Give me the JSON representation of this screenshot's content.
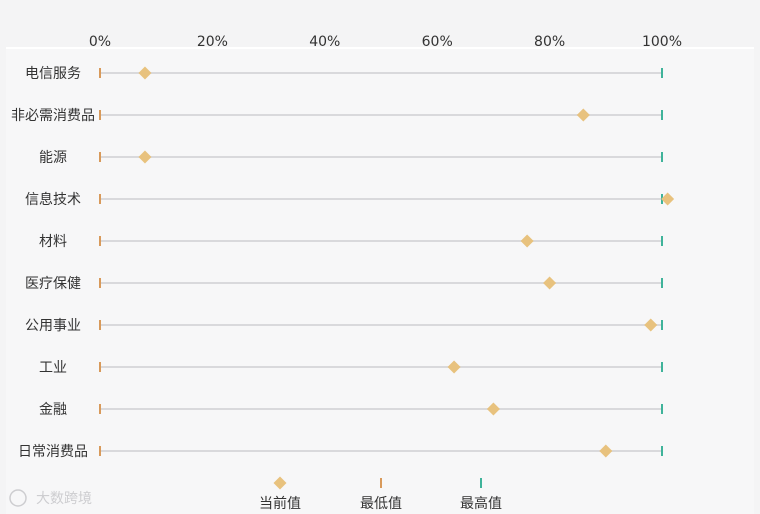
{
  "chart_data": {
    "type": "dot-range",
    "x_ticks": [
      "0%",
      "20%",
      "40%",
      "60%",
      "80%",
      "100%"
    ],
    "x_tick_values": [
      0,
      20,
      40,
      60,
      80,
      100
    ],
    "xlim": [
      0,
      100
    ],
    "x_axis_position": "top",
    "grid": false,
    "categories": [
      "电信服务",
      "非必需消费品",
      "能源",
      "信息技术",
      "材料",
      "医疗保健",
      "公用事业",
      "工业",
      "金融",
      "日常消费品"
    ],
    "series": [
      {
        "name": "当前值",
        "values": [
          8,
          86,
          8,
          101,
          76,
          80,
          98,
          63,
          70,
          90
        ]
      },
      {
        "name": "最低值",
        "values": [
          0,
          0,
          0,
          0,
          0,
          0,
          0,
          0,
          0,
          0
        ]
      },
      {
        "name": "最高值",
        "values": [
          100,
          100,
          100,
          100,
          100,
          100,
          100,
          100,
          100,
          100
        ]
      }
    ],
    "legend": {
      "placement": "bottom-center",
      "items": [
        "当前值",
        "最低值",
        "最高值"
      ]
    },
    "colors": {
      "current": "#e8c27e",
      "low": "#d89a5b",
      "high": "#3fb39a",
      "range_line": "#d9d9dc"
    }
  },
  "watermark": {
    "text": "大数跨境"
  }
}
